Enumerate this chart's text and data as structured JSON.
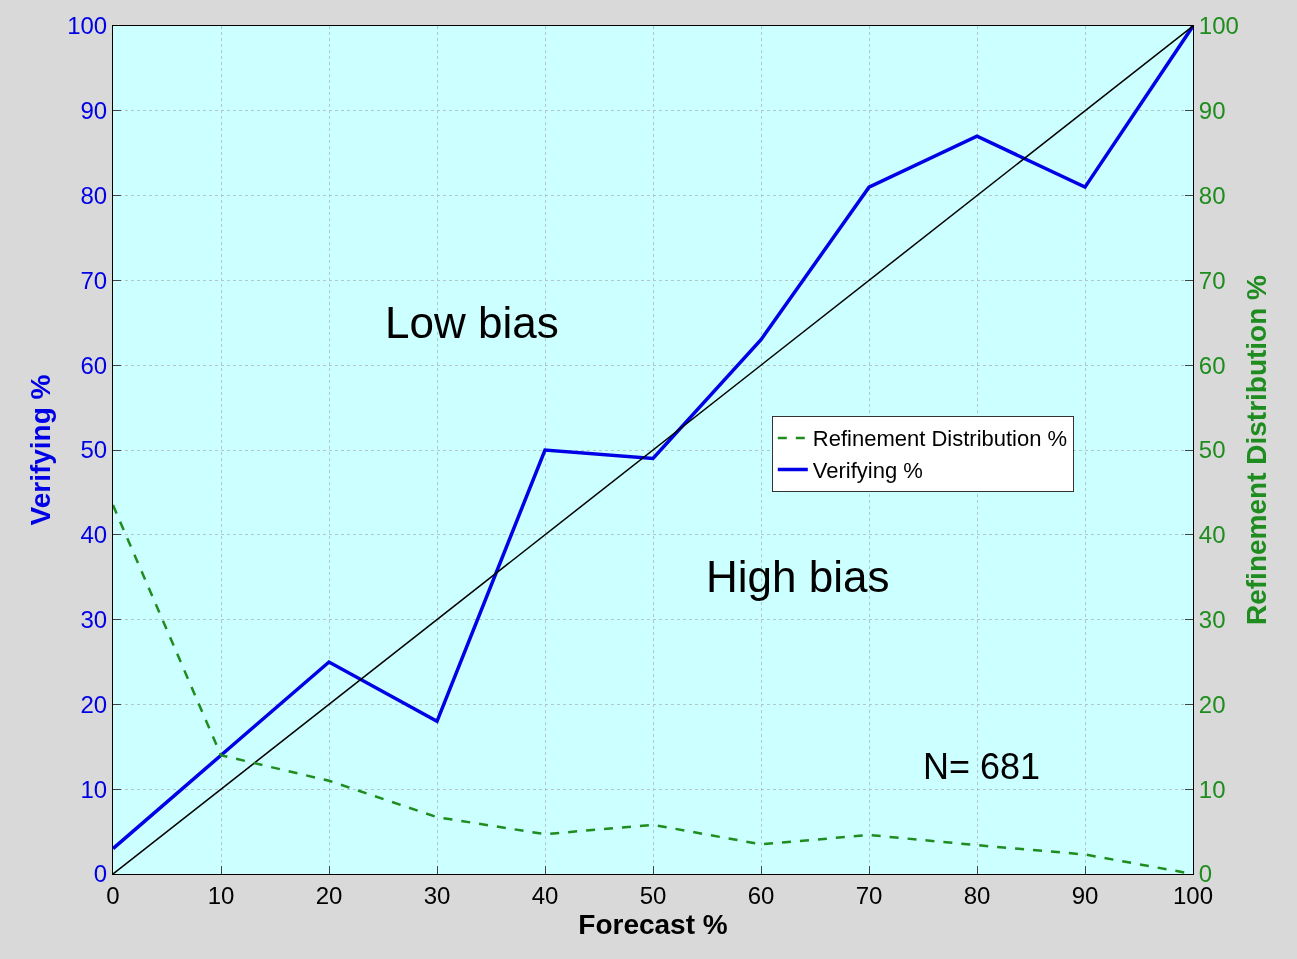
{
  "chart_data": {
    "type": "line",
    "xlabel": "Forecast %",
    "ylabel": "Verifying %",
    "y2label": "Refinement Distribution %",
    "x": [
      0,
      10,
      20,
      30,
      40,
      50,
      60,
      70,
      80,
      90,
      100
    ],
    "series": [
      {
        "name": "Refinement Distribution %",
        "color": "#1e8c1e",
        "axis": "y2",
        "line_style": "dashed",
        "values": [
          43.5,
          14,
          11,
          6.7,
          4.7,
          5.8,
          3.5,
          4.6,
          3.4,
          2.3,
          0
        ]
      },
      {
        "name": "Verifying %",
        "color": "#0000e6",
        "line_style": "solid",
        "values": [
          3,
          14,
          25,
          18,
          50,
          49,
          63,
          81,
          87,
          81,
          100
        ]
      },
      {
        "color": "#000000",
        "line_style": "solid",
        "x": [
          0,
          100
        ],
        "values": [
          0,
          100
        ]
      }
    ],
    "xlim": [
      0,
      100
    ],
    "ylim": [
      0,
      100
    ],
    "y2lim": [
      0,
      100
    ],
    "xticks": [
      0,
      10,
      20,
      30,
      40,
      50,
      60,
      70,
      80,
      90,
      100
    ],
    "yticks": [
      0,
      10,
      20,
      30,
      40,
      50,
      60,
      70,
      80,
      90,
      100
    ],
    "y2ticks": [
      0,
      10,
      20,
      30,
      40,
      50,
      60,
      70,
      80,
      90,
      100
    ],
    "annotations": [
      "Low bias",
      "High bias",
      "N= 681"
    ],
    "grid": true,
    "legend": "right",
    "marker": "none"
  }
}
